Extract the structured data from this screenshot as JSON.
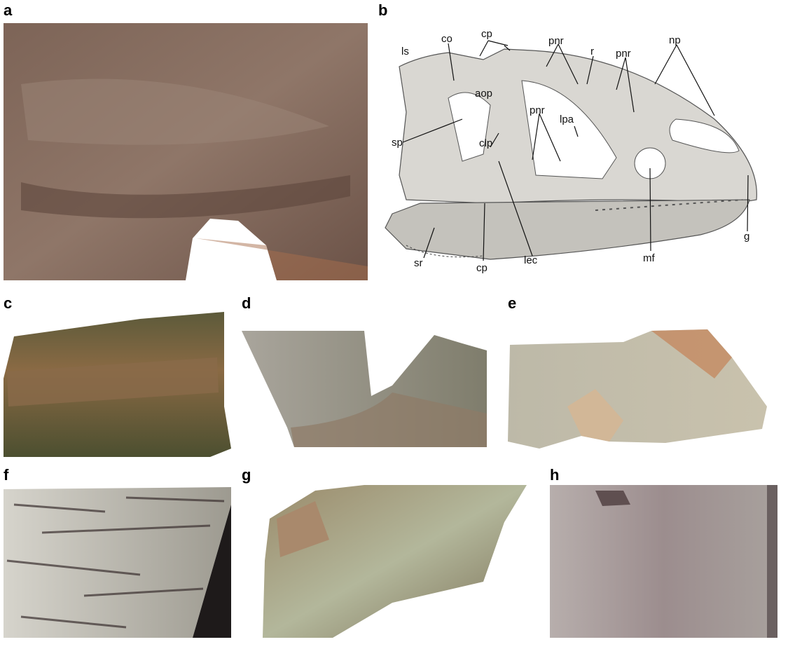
{
  "panels": [
    {
      "label": "a"
    },
    {
      "label": "b",
      "annotations": [
        "ls",
        "co",
        "cp",
        "aop",
        "sp",
        "clp",
        "pnr",
        "r",
        "pnr",
        "np",
        "pnr",
        "lpa",
        "g",
        "mf",
        "lec",
        "cp",
        "sr"
      ]
    },
    {
      "label": "c"
    },
    {
      "label": "d"
    },
    {
      "label": "e"
    },
    {
      "label": "f"
    },
    {
      "label": "g"
    },
    {
      "label": "h"
    }
  ]
}
